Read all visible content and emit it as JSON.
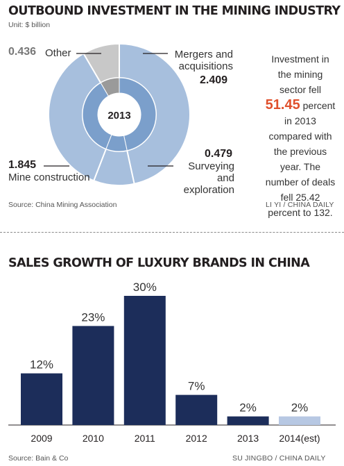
{
  "pie": {
    "title": "OUTBOUND INVESTMENT IN THE MINING INDUSTRY",
    "unit": "Unit: $ billion",
    "center_label": "2013",
    "source": "Source: China Mining Association",
    "credit": "LI YI / CHINA DAILY",
    "note": {
      "before": "Investment in the mining sector fell",
      "highlight": "51.45",
      "after": "percent in 2013 compared with the previous year. The number of deals fell 25.42 percent to 132."
    },
    "colors": {
      "outer": "#a7bfdd",
      "inner": "#7b9fcb",
      "other": "#c8c8c8",
      "highlight": "#e0502c"
    }
  },
  "bar": {
    "title": "SALES GROWTH OF LUXURY BRANDS IN CHINA",
    "source": "Source: Bain & Co",
    "credit": "SU JINGBO / CHINA DAILY",
    "colors": {
      "bar": "#1c2d5a",
      "estimate": "#b7c8e3"
    }
  },
  "chart_data": [
    {
      "type": "pie",
      "center_label": "2013",
      "categories": [
        "Mergers and acquisitions",
        "Surveying and exploration",
        "Mine construction",
        "Other"
      ],
      "values": [
        2.409,
        0.479,
        1.845,
        0.436
      ],
      "value_labels": [
        "2.409",
        "0.479",
        "1.845",
        "0.436"
      ],
      "unit": "$ billion"
    },
    {
      "type": "bar",
      "categories": [
        "2009",
        "2010",
        "2011",
        "2012",
        "2013",
        "2014(est)"
      ],
      "values": [
        12,
        23,
        30,
        7,
        2,
        2
      ],
      "value_labels": [
        "12%",
        "23%",
        "30%",
        "7%",
        "2%",
        "2%"
      ],
      "estimated": [
        false,
        false,
        false,
        false,
        false,
        true
      ],
      "ylim": [
        0,
        30
      ],
      "grid": false
    }
  ]
}
